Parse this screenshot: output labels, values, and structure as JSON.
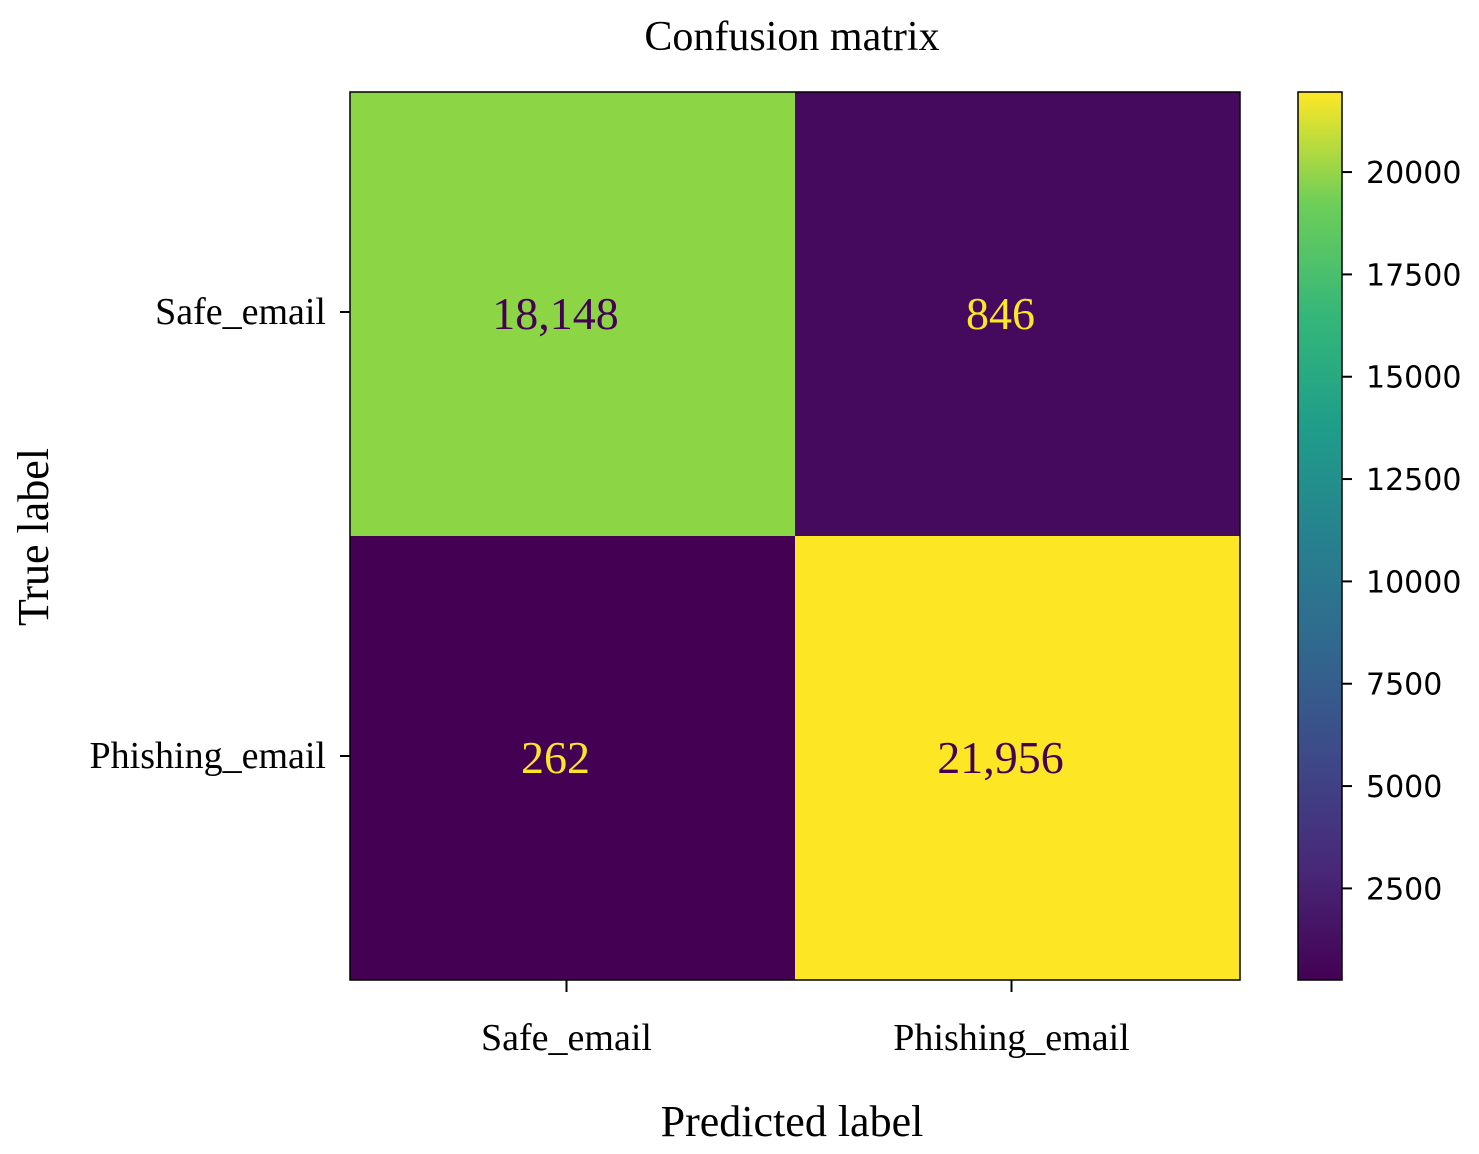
{
  "chart_data": {
    "type": "heatmap",
    "title": "Confusion matrix",
    "xlabel": "Predicted label",
    "ylabel": "True label",
    "x_categories": [
      "Safe_email",
      "Phishing_email"
    ],
    "y_categories": [
      "Safe_email",
      "Phishing_email"
    ],
    "values": [
      [
        18148,
        846
      ],
      [
        262,
        21956
      ]
    ],
    "cell_labels": [
      [
        "18,148",
        "846"
      ],
      [
        "262",
        "21,956"
      ]
    ],
    "colormap": "viridis",
    "colorbar": {
      "range": [
        262,
        21956
      ],
      "ticks": [
        2500,
        5000,
        7500,
        10000,
        12500,
        15000,
        17500,
        20000
      ],
      "tick_labels": [
        "2500",
        "5000",
        "7500",
        "10000",
        "12500",
        "15000",
        "17500",
        "20000"
      ]
    },
    "colors": {
      "low_cell": "#440154",
      "high_cell": "#fde725",
      "mid_high_cell": "#8ed645"
    },
    "grid": false
  }
}
